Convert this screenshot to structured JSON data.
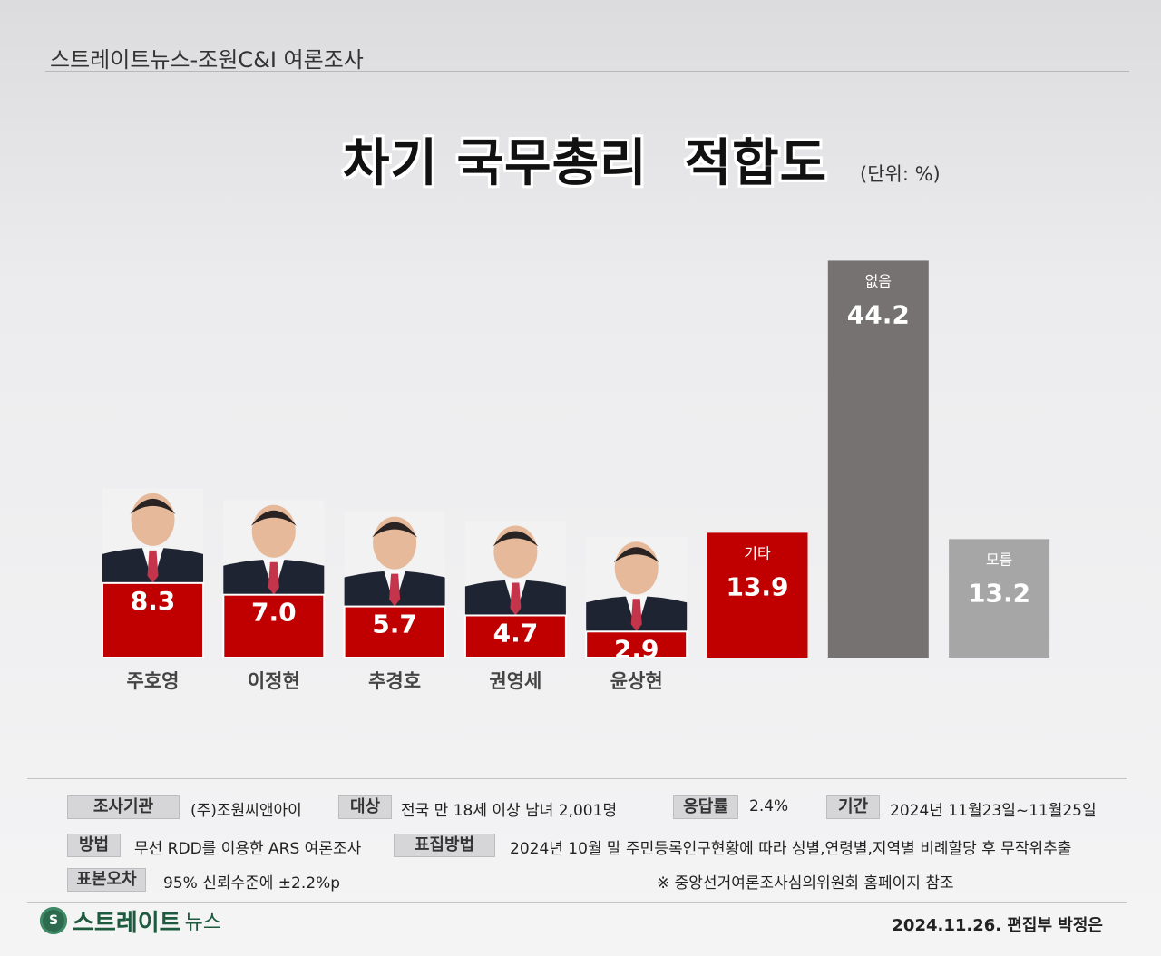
{
  "header": {
    "title": "스트레이트뉴스-조원C&I 여론조사"
  },
  "chart_data": {
    "type": "bar",
    "title": "차기 국무총리  적합도",
    "unit": "(단위: %)",
    "categories": [
      "주호영",
      "이정현",
      "추경호",
      "권영세",
      "윤상현",
      "기타",
      "없음",
      "모름"
    ],
    "values": [
      8.3,
      7.0,
      5.7,
      4.7,
      2.9,
      13.9,
      44.2,
      13.2
    ],
    "value_labels": [
      "8.3",
      "7.0",
      "5.7",
      "4.7",
      "2.9",
      "13.9",
      "44.2",
      "13.2"
    ],
    "colors": [
      "#c00000",
      "#c00000",
      "#c00000",
      "#c00000",
      "#c00000",
      "#c00000",
      "#777272",
      "#a6a6a6"
    ]
  },
  "footer": {
    "survey_org_label": "조사기관",
    "survey_org": "(주)조원씨앤아이",
    "target_label": "대상",
    "target": "전국 만 18세 이상 남녀 2,001명",
    "response_label": "응답률",
    "response": "2.4%",
    "period_label": "기간",
    "period": "2024년 11월23일~11월25일",
    "method_label": "방법",
    "method": "무선 RDD를 이용한 ARS 여론조사",
    "sampling_label": "표집방법",
    "sampling": "2024년 10월 말 주민등록인구현황에 따라 성별,연령별,지역별 비례할당 후 무작위추출",
    "error_label": "표본오차",
    "error": "95% 신뢰수준에 ±2.2%p",
    "note": "※ 중앙선거여론조사심의위원회 홈페이지 참조",
    "logo_icon": "S",
    "logo_text": "스트레이트",
    "logo_sub": "뉴스",
    "credit": "2024.11.26. 편집부 박정은"
  }
}
